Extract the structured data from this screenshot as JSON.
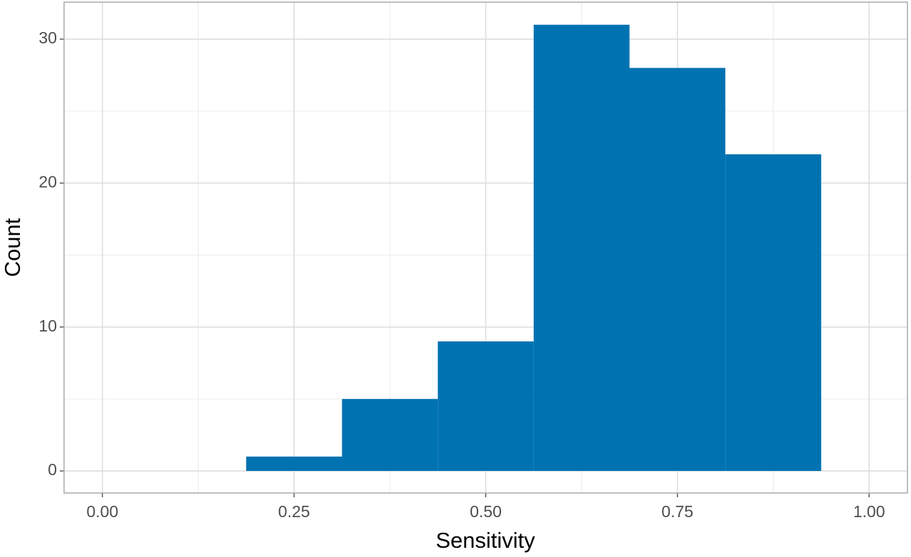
{
  "chart_data": {
    "type": "histogram",
    "x_label": "Sensitivity",
    "y_label": "Count",
    "bins": [
      0.1875,
      0.3125,
      0.4375,
      0.5625,
      0.6875,
      0.8125,
      0.9375
    ],
    "values": [
      1,
      5,
      9,
      31,
      28,
      22
    ],
    "color": "#0072b2",
    "xlim": [
      -0.05,
      1.05
    ],
    "xticks": [
      {
        "value": 0,
        "label": "0.00"
      },
      {
        "value": 0.25,
        "label": "0.25"
      },
      {
        "value": 0.5,
        "label": "0.50"
      },
      {
        "value": 0.75,
        "label": "0.75"
      },
      {
        "value": 1,
        "label": "1.00"
      }
    ],
    "x_minor_grid": [
      0.125,
      0.375,
      0.625,
      0.875
    ],
    "ylim": [
      -1.53,
      32.57
    ],
    "yticks": [
      0,
      10,
      20,
      30
    ],
    "y_minor_grid": [
      5,
      15,
      25
    ],
    "grid": true
  }
}
